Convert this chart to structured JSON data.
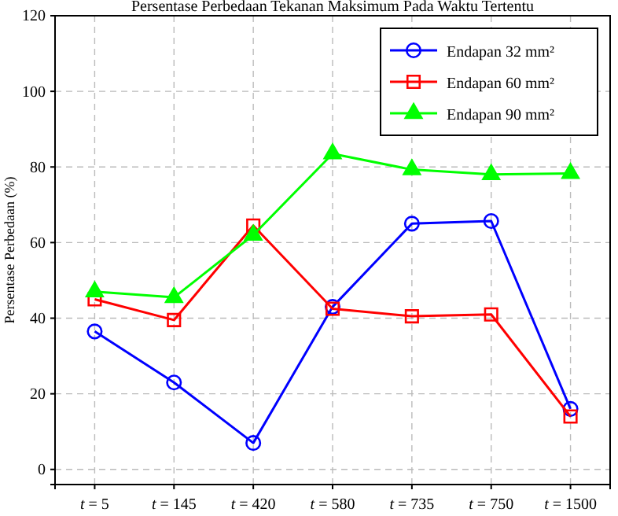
{
  "chart_data": {
    "type": "line",
    "title": "Persentase Perbedaan Tekanan Maksimum Pada Waktu Tertentu",
    "ylabel": "Persentase Perbedaan (%)",
    "categories": [
      "t = 5",
      "t = 145",
      "t = 420",
      "t = 580",
      "t = 735",
      "t = 750",
      "t = 1500"
    ],
    "series": [
      {
        "name": "Endapan 32 mm²",
        "color": "#0000ff",
        "marker": "circle",
        "values": [
          36.5,
          23,
          7,
          43,
          65,
          65.7,
          16
        ]
      },
      {
        "name": "Endapan 60 mm²",
        "color": "#ff0000",
        "marker": "square",
        "values": [
          45,
          39.5,
          64.5,
          42.5,
          40.5,
          41,
          14
        ]
      },
      {
        "name": "Endapan 90 mm²",
        "color": "#00ff00",
        "marker": "triangle",
        "values": [
          47,
          45.5,
          62,
          83.5,
          79.3,
          78,
          78.3
        ]
      }
    ],
    "ylim": [
      -4,
      120
    ],
    "yticks": [
      0,
      20,
      40,
      60,
      80,
      100,
      120
    ],
    "grid": true,
    "legend": "top right",
    "line_style": "solid"
  }
}
